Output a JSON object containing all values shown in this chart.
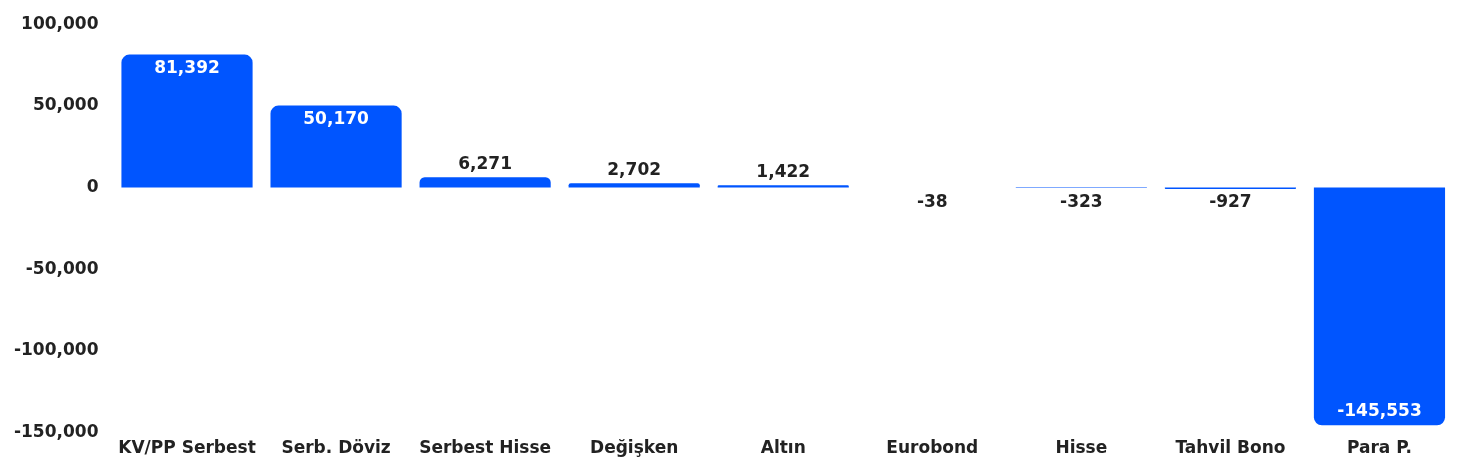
{
  "chart_data": {
    "type": "bar",
    "categories": [
      "KV/PP Serbest",
      "Serb. Döviz",
      "Serbest Hisse",
      "Değişken",
      "Altın",
      "Eurobond",
      "Hisse",
      "Tahvil Bono",
      "Para P."
    ],
    "values": [
      81392,
      50170,
      6271,
      2702,
      1422,
      -38,
      -323,
      -927,
      -145553
    ],
    "color": "#0055ff",
    "ylim": [
      -150000,
      100000
    ],
    "yticks": [
      {
        "value": -150000,
        "label": "-150,000"
      },
      {
        "value": -100000,
        "label": "-100,000"
      },
      {
        "value": -50000,
        "label": "-50,000"
      },
      {
        "value": 0,
        "label": "0"
      },
      {
        "value": 50000,
        "label": "50,000"
      },
      {
        "value": 100000,
        "label": "100,000"
      }
    ],
    "value_labels": [
      "81,392",
      "50,170",
      "6,271",
      "2,702",
      "1,422",
      "-38",
      "-323",
      "-927",
      "-145,553"
    ],
    "grid": false,
    "legend": false
  }
}
